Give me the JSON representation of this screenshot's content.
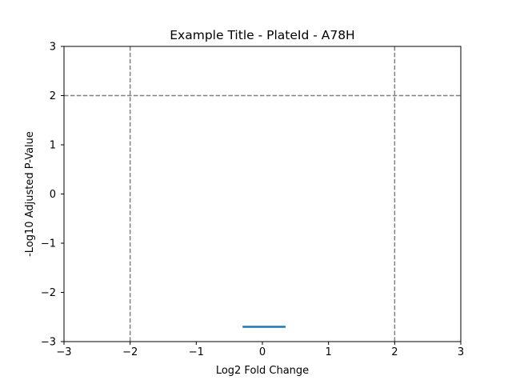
{
  "chart_data": {
    "type": "scatter",
    "title": "Example Title - PlateId - A78H",
    "xlabel": "Log2 Fold Change",
    "ylabel": "-Log10 Adjusted P-Value",
    "xlim": [
      -3,
      3
    ],
    "ylim": [
      -3,
      3
    ],
    "xticks": [
      "−3",
      "−2",
      "−1",
      "0",
      "1",
      "2",
      "3"
    ],
    "yticks": [
      "−3",
      "−2",
      "−1",
      "0",
      "1",
      "2",
      "3"
    ],
    "grid": false,
    "threshold_lines": {
      "vertical_x": [
        -2,
        2
      ],
      "horizontal_y": [
        2
      ],
      "color": "#808080",
      "style": "dashed"
    },
    "series": [
      {
        "color": "#1f77b4",
        "x": [
          -0.3,
          0.35
        ],
        "y": [
          -2.7,
          -2.7
        ]
      }
    ]
  }
}
